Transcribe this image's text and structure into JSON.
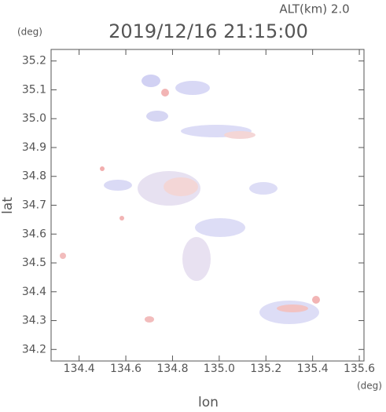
{
  "chart_data": {
    "type": "map",
    "title": "2019/12/16 21:15:00",
    "altitude_label": "ALT(km)  2.0",
    "x_label": "lon",
    "y_label": "lat",
    "x_unit": "(deg)",
    "y_unit": "(deg)",
    "xlim": [
      134.28,
      135.62
    ],
    "ylim": [
      34.16,
      35.24
    ],
    "xticks": [
      134.4,
      134.6,
      134.8,
      {
        "value": 135,
        "label": "135.0"
      },
      135.2,
      135.4,
      135.6
    ],
    "yticks": [
      34.2,
      34.3,
      34.4,
      34.5,
      34.6,
      34.7,
      34.8,
      34.9,
      {
        "value": 35,
        "label": "35.0"
      },
      35.1,
      35.2
    ]
  }
}
